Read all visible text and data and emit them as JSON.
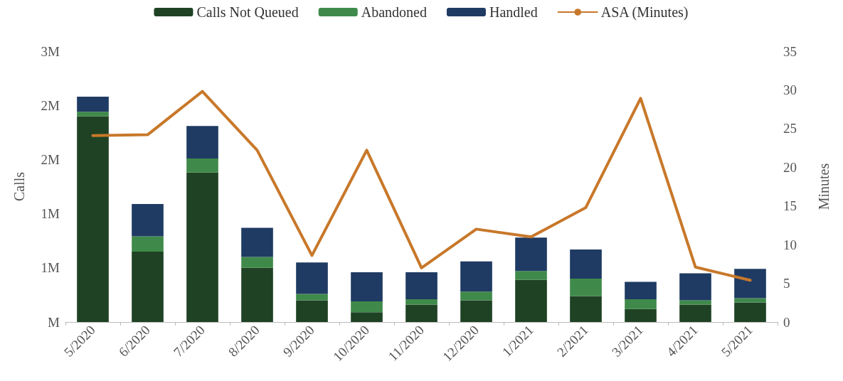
{
  "chart_data": {
    "type": "bar",
    "stacked": true,
    "legend": "top",
    "grid": false,
    "ylabel": "Calls",
    "y2label": "Minutes",
    "categories": [
      "5/2020",
      "6/2020",
      "7/2020",
      "8/2020",
      "9/2020",
      "10/2020",
      "11/2020",
      "12/2020",
      "1/2021",
      "2/2021",
      "3/2021",
      "4/2021",
      "5/2021"
    ],
    "ylim": [
      0,
      2500000
    ],
    "yticks": [
      {
        "value": 0,
        "label": "M"
      },
      {
        "value": 500000,
        "label": "1M"
      },
      {
        "value": 1000000,
        "label": "1M"
      },
      {
        "value": 1500000,
        "label": "2M"
      },
      {
        "value": 2000000,
        "label": "2M"
      },
      {
        "value": 2500000,
        "label": "3M"
      }
    ],
    "y2lim": [
      0,
      35
    ],
    "y2ticks": [
      0,
      5,
      10,
      15,
      20,
      25,
      30,
      35
    ],
    "series": [
      {
        "name": "Calls Not Queued",
        "color": "#1f4224",
        "values": [
          1900000,
          650000,
          1380000,
          500000,
          200000,
          90000,
          160000,
          200000,
          390000,
          240000,
          120000,
          160000,
          180000
        ]
      },
      {
        "name": "Abandoned",
        "color": "#3f8a4a",
        "values": [
          40000,
          140000,
          130000,
          100000,
          60000,
          100000,
          50000,
          80000,
          80000,
          160000,
          90000,
          40000,
          40000
        ]
      },
      {
        "name": "Handled",
        "color": "#1f3b63",
        "values": [
          140000,
          300000,
          300000,
          270000,
          290000,
          270000,
          250000,
          280000,
          310000,
          270000,
          160000,
          250000,
          270000
        ]
      },
      {
        "type": "line",
        "axis": "y2",
        "name": "ASA (Minutes)",
        "color": "#c8782a",
        "marker": "none",
        "values": [
          24.1,
          24.2,
          29.8,
          22.2,
          8.6,
          22.2,
          7.0,
          12.0,
          11.0,
          14.8,
          28.9,
          7.1,
          5.4
        ]
      }
    ]
  }
}
